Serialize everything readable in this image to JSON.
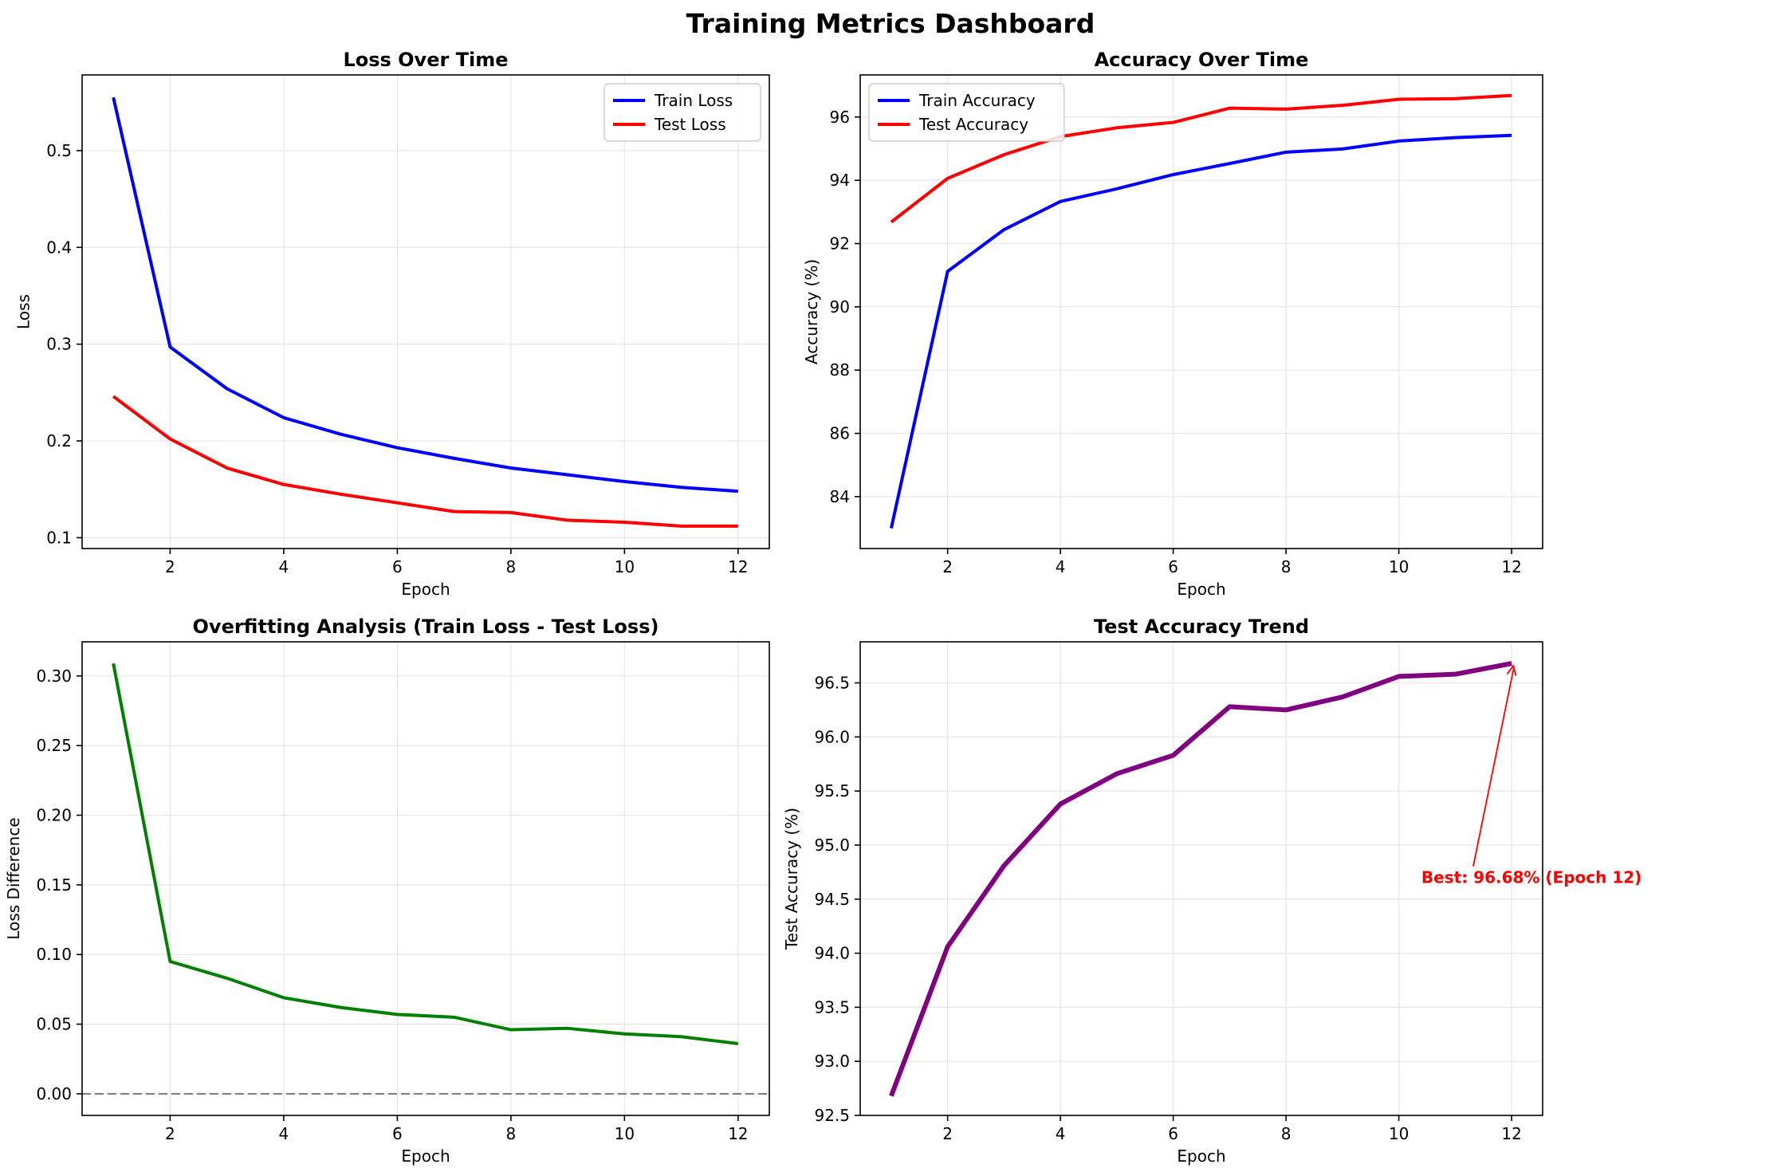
{
  "figure": {
    "suptitle": "Training Metrics Dashboard"
  },
  "colors": {
    "train": "#0000ff",
    "test": "#ff0000",
    "diff": "#008000",
    "trend": "#800080",
    "zero_line": "#808080",
    "annotation": "#ff0000",
    "grid": "#e6e6e6",
    "axis": "#000000"
  },
  "chart_data": [
    {
      "id": "loss",
      "type": "line",
      "title": "Loss Over Time",
      "xlabel": "Epoch",
      "ylabel": "Loss",
      "xlim": [
        0.45,
        12.55
      ],
      "ylim": [
        0.0888,
        0.5782
      ],
      "xticks": [
        2,
        4,
        6,
        8,
        10,
        12
      ],
      "yticks": [
        0.1,
        0.2,
        0.3,
        0.4,
        0.5
      ],
      "ytick_labels": [
        "0.1",
        "0.2",
        "0.3",
        "0.4",
        "0.5"
      ],
      "grid": true,
      "legend": "top-right",
      "x": [
        1,
        2,
        3,
        4,
        5,
        6,
        7,
        8,
        9,
        10,
        11,
        12
      ],
      "series": [
        {
          "name": "Train Loss",
          "color": "#0000ff",
          "width": 2,
          "values": [
            0.555,
            0.297,
            0.254,
            0.224,
            0.207,
            0.193,
            0.182,
            0.172,
            0.165,
            0.158,
            0.152,
            0.148
          ]
        },
        {
          "name": "Test Loss",
          "color": "#ff0000",
          "width": 2,
          "values": [
            0.246,
            0.202,
            0.172,
            0.155,
            0.145,
            0.136,
            0.127,
            0.126,
            0.118,
            0.116,
            0.112,
            0.112
          ]
        }
      ]
    },
    {
      "id": "accuracy",
      "type": "line",
      "title": "Accuracy Over Time",
      "xlabel": "Epoch",
      "ylabel": "Accuracy (%)",
      "xlim": [
        0.45,
        12.55
      ],
      "ylim": [
        82.36,
        97.33
      ],
      "xticks": [
        2,
        4,
        6,
        8,
        10,
        12
      ],
      "yticks": [
        84,
        86,
        88,
        90,
        92,
        94,
        96
      ],
      "ytick_labels": [
        "84",
        "86",
        "88",
        "90",
        "92",
        "94",
        "96"
      ],
      "grid": true,
      "legend": "top-left",
      "x": [
        1,
        2,
        3,
        4,
        5,
        6,
        7,
        8,
        9,
        10,
        11,
        12
      ],
      "series": [
        {
          "name": "Train Accuracy",
          "color": "#0000ff",
          "width": 2,
          "values": [
            83.0,
            91.12,
            92.44,
            93.33,
            93.73,
            94.18,
            94.53,
            94.89,
            94.99,
            95.24,
            95.35,
            95.42
          ]
        },
        {
          "name": "Test Accuracy",
          "color": "#ff0000",
          "width": 2,
          "values": [
            92.68,
            94.06,
            94.81,
            95.38,
            95.66,
            95.83,
            96.28,
            96.25,
            96.37,
            96.56,
            96.58,
            96.68
          ]
        }
      ]
    },
    {
      "id": "overfit",
      "type": "line",
      "title": "Overfitting Analysis (Train Loss - Test Loss)",
      "xlabel": "Epoch",
      "ylabel": "Loss Difference",
      "xlim": [
        0.45,
        12.55
      ],
      "ylim": [
        -0.0155,
        0.3245
      ],
      "xticks": [
        2,
        4,
        6,
        8,
        10,
        12
      ],
      "yticks": [
        0.0,
        0.05,
        0.1,
        0.15,
        0.2,
        0.25,
        0.3
      ],
      "ytick_labels": [
        "0.00",
        "0.05",
        "0.10",
        "0.15",
        "0.20",
        "0.25",
        "0.30"
      ],
      "grid": true,
      "x": [
        1,
        2,
        3,
        4,
        5,
        6,
        7,
        8,
        9,
        10,
        11,
        12
      ],
      "hline": 0,
      "series": [
        {
          "color": "#008000",
          "width": 2,
          "values": [
            0.309,
            0.095,
            0.083,
            0.069,
            0.062,
            0.057,
            0.055,
            0.046,
            0.047,
            0.043,
            0.041,
            0.036
          ]
        }
      ]
    },
    {
      "id": "trend",
      "type": "line",
      "title": "Test Accuracy Trend",
      "xlabel": "Epoch",
      "ylabel": "Test Accuracy (%)",
      "xlim": [
        0.45,
        12.55
      ],
      "ylim": [
        92.5,
        96.88
      ],
      "xticks": [
        2,
        4,
        6,
        8,
        10,
        12
      ],
      "yticks": [
        92.5,
        93.0,
        93.5,
        94.0,
        94.5,
        95.0,
        95.5,
        96.0,
        96.5
      ],
      "ytick_labels": [
        "92.5",
        "93.0",
        "93.5",
        "94.0",
        "94.5",
        "95.0",
        "95.5",
        "96.0",
        "96.5"
      ],
      "grid": true,
      "x": [
        1,
        2,
        3,
        4,
        5,
        6,
        7,
        8,
        9,
        10,
        11,
        12
      ],
      "series": [
        {
          "color": "#800080",
          "width": 3,
          "values": [
            92.68,
            94.06,
            94.81,
            95.38,
            95.66,
            95.83,
            96.28,
            96.25,
            96.37,
            96.56,
            96.58,
            96.68
          ]
        }
      ],
      "annotation": {
        "text": "Best: 96.68% (Epoch 12)",
        "point": [
          12,
          96.68
        ],
        "text_at": [
          12.45,
          94.7
        ]
      }
    }
  ]
}
